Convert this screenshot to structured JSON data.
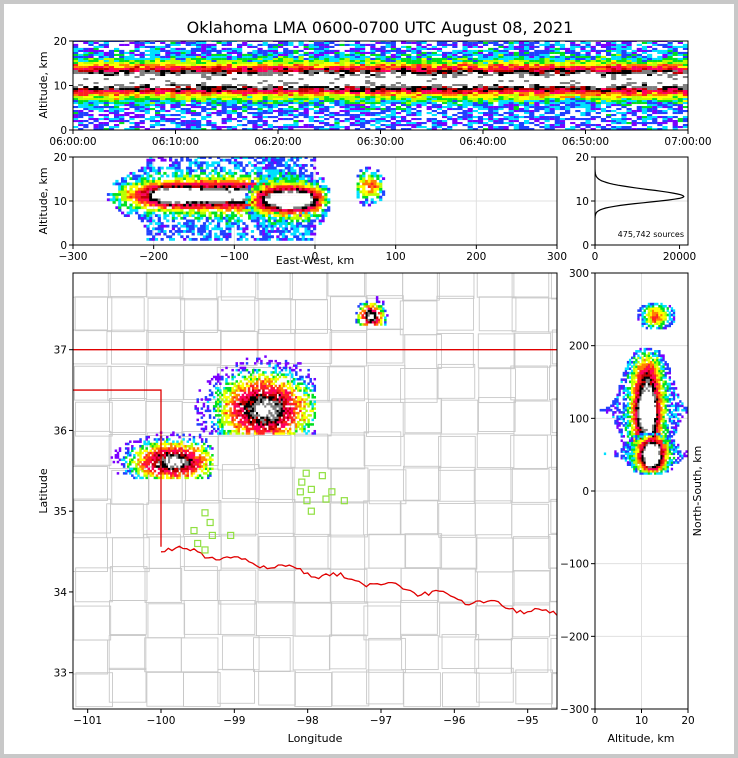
{
  "chart_data": [
    {
      "type": "heatmap",
      "panel": "altitude-time",
      "title": "Oklahoma LMA 0600-0700 UTC August 08, 2021",
      "ylabel": "Altitude, km",
      "xlim_minutes": [
        0,
        60
      ],
      "ylim": [
        0,
        20
      ],
      "x_ticks": [
        "06:00:00",
        "06:10:00",
        "06:20:00",
        "06:30:00",
        "06:40:00",
        "06:50:00",
        "07:00:00"
      ],
      "y_ticks": [
        "0",
        "10",
        "20"
      ],
      "core_altitude_km": 11
    },
    {
      "type": "heatmap",
      "panel": "east-west-altitude",
      "xlabel": "East-West, km",
      "ylabel": "Altitude, km",
      "xlim": [
        -300,
        300
      ],
      "ylim": [
        0,
        20
      ],
      "x_ticks": [
        "−300",
        "−200",
        "−100",
        "0",
        "100",
        "200",
        "300"
      ],
      "y_ticks": [
        "0",
        "10",
        "20"
      ],
      "clusters": [
        {
          "x_range": [
            -265,
            15
          ],
          "center_x": -180,
          "peak_alt": 11,
          "intensity": 1.0
        },
        {
          "x_range": [
            -90,
            20
          ],
          "center_x": -30,
          "peak_alt": 10,
          "intensity": 1.0
        },
        {
          "x_range": [
            48,
            85
          ],
          "center_x": 65,
          "peak_alt": 13,
          "intensity": 0.4
        }
      ]
    },
    {
      "type": "line",
      "panel": "altitude-histogram",
      "xlim": [
        0,
        22000
      ],
      "ylim": [
        0,
        20
      ],
      "x_ticks": [
        "0",
        "20000"
      ],
      "y_ticks": [
        "0",
        "10",
        "20"
      ],
      "source_count": "475,742 sources",
      "peak_altitude_km": 11,
      "peak_count": 21000
    },
    {
      "type": "heatmap",
      "panel": "plan-view-map",
      "xlabel": "Longitude",
      "ylabel": "Latitude",
      "xlim": [
        -101.2,
        -94.6
      ],
      "ylim": [
        32.55,
        37.95
      ],
      "x_ticks": [
        "−101",
        "−100",
        "−99",
        "−98",
        "−97",
        "−96",
        "−95"
      ],
      "y_ticks": [
        "33",
        "34",
        "35",
        "36",
        "37"
      ],
      "clusters": [
        {
          "lon_range": [
            -100.8,
            -99.3
          ],
          "lat_range": [
            35.4,
            36.05
          ],
          "center": [
            -99.85,
            35.6
          ]
        },
        {
          "lon_range": [
            -99.6,
            -97.9
          ],
          "lat_range": [
            35.95,
            37.1
          ],
          "center": [
            -98.6,
            36.25
          ]
        },
        {
          "lon_range": [
            -97.35,
            -96.9
          ],
          "lat_range": [
            37.3,
            37.75
          ],
          "center": [
            -97.15,
            37.4
          ]
        }
      ],
      "stations": [
        [
          -98.02,
          35.47
        ],
        [
          -97.8,
          35.44
        ],
        [
          -98.08,
          35.36
        ],
        [
          -97.95,
          35.27
        ],
        [
          -98.1,
          35.24
        ],
        [
          -97.67,
          35.24
        ],
        [
          -98.01,
          35.13
        ],
        [
          -97.75,
          35.15
        ],
        [
          -97.5,
          35.13
        ],
        [
          -97.95,
          35.0
        ],
        [
          -99.4,
          34.98
        ],
        [
          -99.33,
          34.86
        ],
        [
          -99.55,
          34.76
        ],
        [
          -99.3,
          34.7
        ],
        [
          -99.05,
          34.7
        ],
        [
          -99.5,
          34.6
        ],
        [
          -99.4,
          34.52
        ]
      ]
    },
    {
      "type": "heatmap",
      "panel": "altitude-north-south",
      "xlabel": "Altitude, km",
      "ylabel": "North-South, km",
      "xlim": [
        0,
        20
      ],
      "ylim": [
        -300,
        300
      ],
      "x_ticks": [
        "0",
        "10",
        "20"
      ],
      "y_ticks": [
        "−300",
        "−200",
        "−100",
        "0",
        "100",
        "200",
        "300"
      ],
      "clusters": [
        {
          "y_range": [
            20,
            200
          ],
          "center_y": 110,
          "peak_alt": 11
        },
        {
          "y_range": [
            20,
            80
          ],
          "center_y": 45,
          "peak_alt": 12
        },
        {
          "y_range": [
            220,
            260
          ],
          "center_y": 235,
          "peak_alt": 13,
          "intensity": 0.4
        }
      ]
    }
  ],
  "colors": {
    "scale": [
      "#7a00ff",
      "#2040ff",
      "#00e0ff",
      "#00e020",
      "#b8ff00",
      "#ffff00",
      "#ff8000",
      "#ff2020",
      "#ff0060",
      "#c00000",
      "#000000",
      "#808080",
      "#ffffff"
    ],
    "state_border": "#e00000",
    "county_line": "#c8c8c8",
    "station": "#90e040",
    "grid": "#e0e0e0"
  }
}
